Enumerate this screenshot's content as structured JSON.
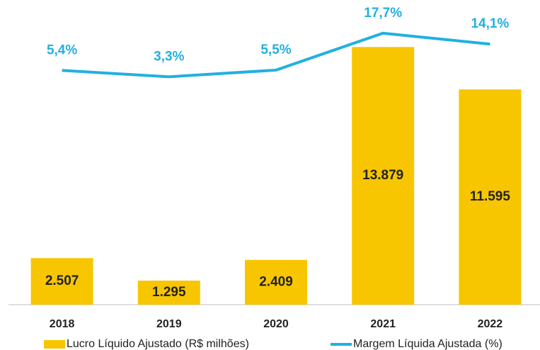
{
  "chart_data": {
    "type": "bar",
    "categories": [
      "2018",
      "2019",
      "2020",
      "2021",
      "2022"
    ],
    "series": [
      {
        "name": "Lucro Líquido Ajustado (R$ milhões)",
        "type": "bar",
        "color": "#f7c600",
        "values": [
          2507,
          1295,
          2409,
          13879,
          11595
        ],
        "value_labels": [
          "2.507",
          "1.295",
          "2.409",
          "13.879",
          "11.595"
        ]
      },
      {
        "name": "Margem Líquida Ajustada (%)",
        "type": "line",
        "axis": "y2",
        "color": "#23b0e0",
        "values": [
          5.4,
          3.3,
          5.5,
          17.7,
          14.1
        ],
        "value_labels": [
          "5,4%",
          "3,3%",
          "5,5%",
          "17,7%",
          "14,1%"
        ]
      }
    ],
    "ylim": [
      0,
      15000
    ],
    "y2lim": [
      -72,
      20
    ],
    "legend": "bottom"
  }
}
